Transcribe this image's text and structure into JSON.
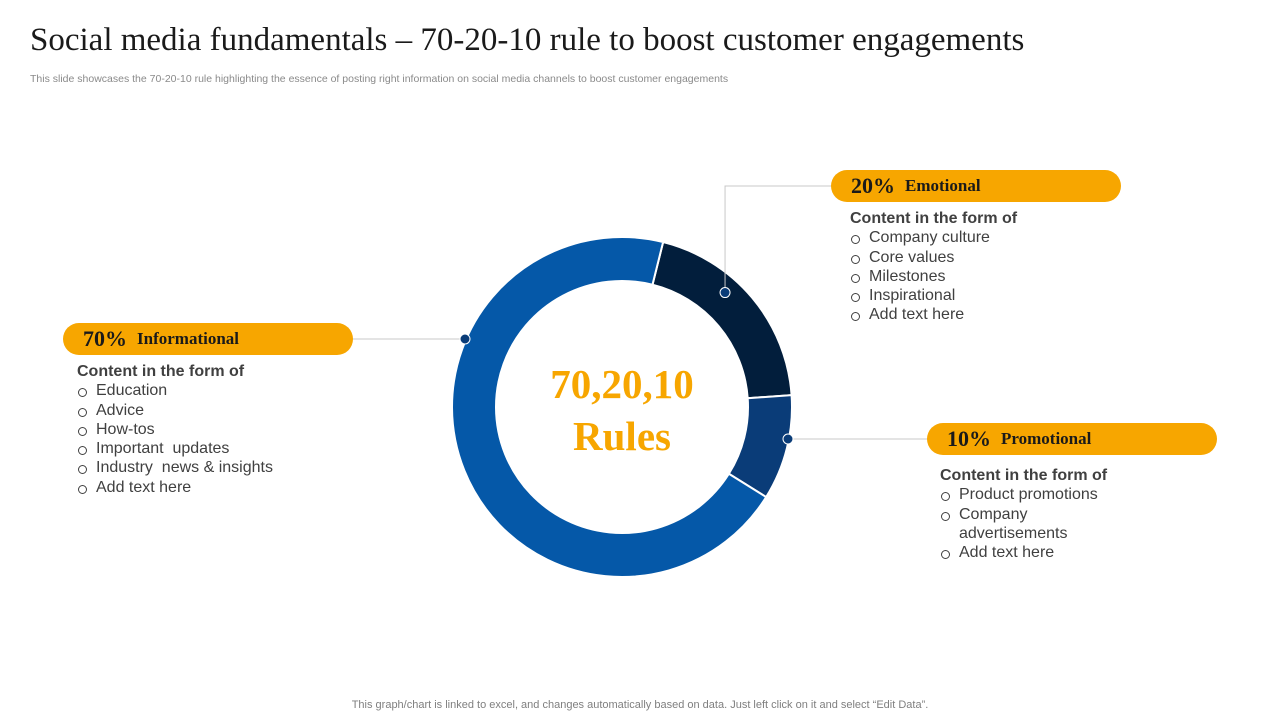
{
  "page": {
    "title": "Social media fundamentals – 70-20-10 rule to boost customer engagements",
    "subtitle": "This slide showcases the 70-20-10 rule highlighting the essence of posting right information on social media channels to boost customer engagements",
    "footer": "This graph/chart is linked to excel, and changes automatically based on data. Just left click on it and select “Edit Data”."
  },
  "center": {
    "line1": "70,20,10",
    "line2": "Rules"
  },
  "chart_data": {
    "type": "pie",
    "style": "donut",
    "categories": [
      "Emotional",
      "Promotional",
      "Informational"
    ],
    "values": [
      20,
      10,
      70
    ],
    "colors": [
      "#021e3c",
      "#0a3c78",
      "#0558a8"
    ]
  },
  "callouts": {
    "emotional": {
      "pct": "20%",
      "name": "Emotional",
      "head": "Content in the form of",
      "items": [
        "Company culture",
        "Core values",
        "Milestones",
        "Inspirational",
        "Add text here"
      ]
    },
    "informational": {
      "pct": "70%",
      "name": "Informational",
      "head": "Content in the form of",
      "items": [
        "Education",
        "Advice",
        "How-tos",
        "Important  updates",
        "Industry  news & insights",
        "Add text here"
      ]
    },
    "promotional": {
      "pct": "10%",
      "name": "Promotional",
      "head": "Content in the form of",
      "items": [
        "Product promotions",
        "Company advertisements",
        "Add text here"
      ]
    }
  },
  "colors": {
    "accent": "#f7a600",
    "connector": "#c8c8c8",
    "dot": "#0a3c78"
  }
}
